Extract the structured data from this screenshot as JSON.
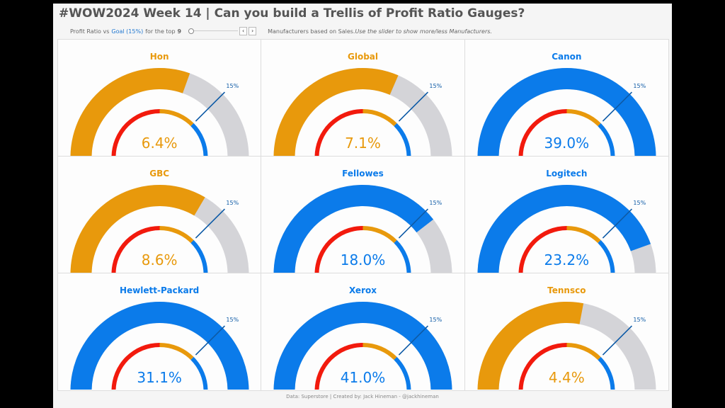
{
  "header": {
    "title": "#WOW2024 Week 14 | Can you build a Trellis of Profit Ratio Gauges?",
    "subtitle_prefix": "Profit Ratio vs",
    "subtitle_goal": "Goal (15%)",
    "subtitle_mid": "for the top",
    "top_n": "9",
    "subtitle_suffix": "Manufacturers based on Sales.",
    "subtitle_hint": "Use the slider to show more/less Manufacturers.",
    "prev_label": "‹",
    "next_label": "›"
  },
  "footer": {
    "text": "Data: Superstore | Created by: Jack Hineman - @jackhineman"
  },
  "colors": {
    "below_goal": "#e8990c",
    "above_goal": "#0b7bea",
    "track": "#d4d4d8",
    "band_low": "#f21a0d",
    "band_mid": "#e8990c",
    "band_high": "#0b7bea",
    "goal_marker": "#0d5aa6"
  },
  "chart_data": {
    "type": "gauge",
    "title": "#WOW2024 Week 14 | Can you build a Trellis of Profit Ratio Gauges?",
    "goal": 15,
    "goal_label": "15%",
    "goal_position": 0.75,
    "bands": [
      {
        "name": "low",
        "from": 0,
        "to": 0.5
      },
      {
        "name": "mid",
        "from": 0.5,
        "to": 0.75
      },
      {
        "name": "high",
        "from": 0.75,
        "to": 1
      }
    ],
    "gauges": [
      {
        "name": "Hon",
        "value": 6.4,
        "label": "6.4%",
        "fill": 0.61
      },
      {
        "name": "Global",
        "value": 7.1,
        "label": "7.1%",
        "fill": 0.63
      },
      {
        "name": "Canon",
        "value": 39.0,
        "label": "39.0%",
        "fill": 1.0
      },
      {
        "name": "GBC",
        "value": 8.6,
        "label": "8.6%",
        "fill": 0.67
      },
      {
        "name": "Fellowes",
        "value": 18.0,
        "label": "18.0%",
        "fill": 0.79
      },
      {
        "name": "Logitech",
        "value": 23.2,
        "label": "23.2%",
        "fill": 0.89
      },
      {
        "name": "Hewlett-Packard",
        "value": 31.1,
        "label": "31.1%",
        "fill": 1.0
      },
      {
        "name": "Xerox",
        "value": 41.0,
        "label": "41.0%",
        "fill": 1.0
      },
      {
        "name": "Tennsco",
        "value": 4.4,
        "label": "4.4%",
        "fill": 0.56
      }
    ]
  }
}
